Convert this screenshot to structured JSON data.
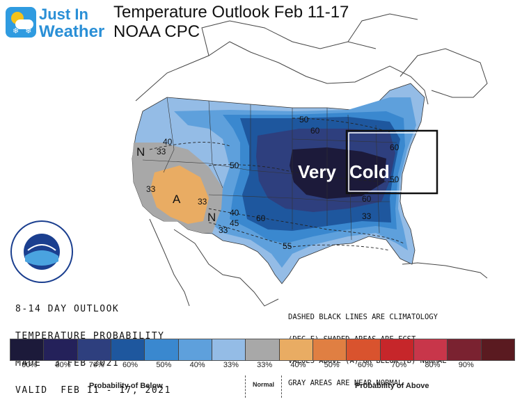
{
  "brand": {
    "line1": "Just In",
    "line2": "Weather"
  },
  "title": {
    "line1": "Temperature Outlook Feb 11-17",
    "line2": "NOAA CPC"
  },
  "annotation": {
    "very_cold_a": "Very",
    "very_cold_b": "Cold"
  },
  "outlook": {
    "line1": "8-14 DAY OUTLOOK",
    "line2": "TEMPERATURE PROBABILITY",
    "line3": "MADE  3 FEB 2021",
    "line4": "VALID  FEB 11 - 17, 2021"
  },
  "note": {
    "line1": "DASHED BLACK LINES ARE CLIMATOLOGY",
    "line2": "(DEG F) SHADED AREAS ARE FCST",
    "line3": "VALUES ABOVE (A) OR BELOW (B) NORMAL",
    "line4": "GRAY AREAS ARE NEAR-NORMAL"
  },
  "map_labels": {
    "n_west": "N",
    "a_southwest": "A",
    "n_plains": "N",
    "c33a": "33",
    "c33b": "33",
    "c33c": "33",
    "c33d": "33",
    "c33e": "33",
    "c40a": "40",
    "c40b": "40",
    "c50a": "50",
    "c50b": "50",
    "c50c": "50",
    "c60a": "60",
    "c60b": "60",
    "c60c": "60",
    "c60d": "60",
    "c55": "55",
    "c45": "45"
  },
  "legend": {
    "colors": [
      "#1c1a3a",
      "#24215a",
      "#2e3f7e",
      "#1e579e",
      "#3a88cf",
      "#5ea0dc",
      "#94bce6",
      "#a8a8a8",
      "#e9ac63",
      "#e07f42",
      "#d9532e",
      "#c6262a",
      "#c8364a",
      "#7a2230",
      "#5a1a20"
    ],
    "ticks": [
      "90%",
      "80%",
      "70%",
      "60%",
      "50%",
      "40%",
      "33%",
      "33%",
      "40%",
      "50%",
      "60%",
      "70%",
      "80%",
      "90%"
    ],
    "below_label": "Probability of Below",
    "normal_label": "Normal",
    "above_label": "Probability of Above"
  },
  "colors": {
    "cat90": "#1c1a3a",
    "cat70": "#2e3f7e",
    "cat60": "#1e579e",
    "cat50": "#3a88cf",
    "cat40": "#5ea0dc",
    "cat33": "#94bce6",
    "normal": "#a8a8a8",
    "above40": "#e9ac63"
  }
}
